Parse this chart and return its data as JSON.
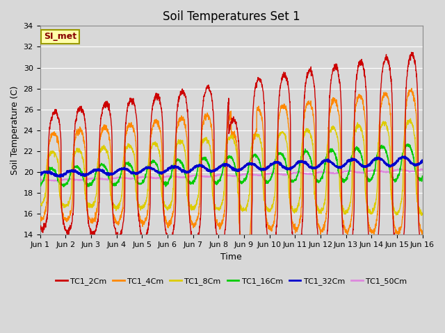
{
  "title": "Soil Temperatures Set 1",
  "xlabel": "Time",
  "ylabel": "Soil Temperature (C)",
  "ylim": [
    14,
    34
  ],
  "xlim": [
    0,
    15
  ],
  "xtick_labels": [
    "Jun 1",
    "Jun 2",
    "Jun 3",
    "Jun 4",
    "Jun 5",
    "Jun 6",
    "Jun 7",
    "Jun 8",
    "Jun 9",
    "Jun 10",
    "Jun 11",
    "Jun 12",
    "Jun 13",
    "Jun 14",
    "Jun 15",
    "Jun 16"
  ],
  "ytick_values": [
    14,
    16,
    18,
    20,
    22,
    24,
    26,
    28,
    30,
    32,
    34
  ],
  "series_names": [
    "TC1_2Cm",
    "TC1_4Cm",
    "TC1_8Cm",
    "TC1_16Cm",
    "TC1_32Cm",
    "TC1_50Cm"
  ],
  "series_colors": [
    "#cc0000",
    "#ff8800",
    "#ddcc00",
    "#00cc00",
    "#0000cc",
    "#dd88dd"
  ],
  "bg_color": "#d8d8d8",
  "plot_bg_color": "#d8d8d8",
  "annotation_text": "SI_met",
  "annotation_bg": "#ffffaa",
  "annotation_border": "#999900",
  "title_fontsize": 12,
  "label_fontsize": 9,
  "tick_fontsize": 8,
  "legend_fontsize": 8
}
